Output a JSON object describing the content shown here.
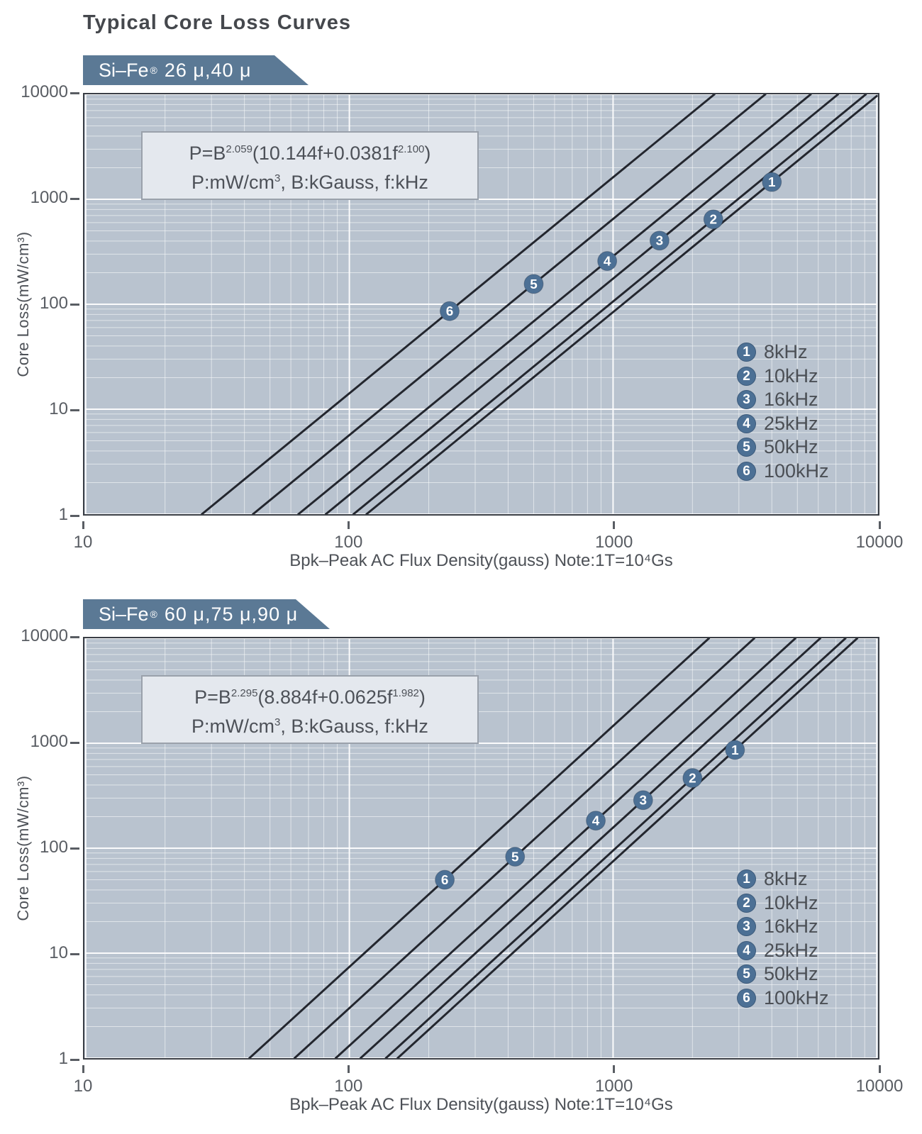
{
  "page": {
    "title": "Typical Core Loss Curves"
  },
  "colors": {
    "page_bg": "#ffffff",
    "plot_bg": "#b9c3cf",
    "grid": "#ffffff",
    "curve": "#23262e",
    "badge_bg": "#5b7995",
    "badge_text": "#ffffff",
    "marker_fill": "#4c7095",
    "marker_text": "#ffffff",
    "title_text": "#45484d",
    "axis_text": "#595d63",
    "formula_box_bg": "#e4e8ee",
    "formula_box_border": "#9aa1ab",
    "plot_border": "#3a3e45"
  },
  "charts": [
    {
      "badge": {
        "name": "Si–Fe",
        "reg": "®",
        "sizes": "26 μ,40 μ"
      },
      "formula_line1": [
        {
          "t": "P=B"
        },
        {
          "t": "2.059",
          "sup": 1
        },
        {
          "t": "(10.144f+0.0381f"
        },
        {
          "t": "2.100",
          "sup": 1
        },
        {
          "t": ")"
        }
      ],
      "formula_line2": [
        {
          "t": "P:mW/cm"
        },
        {
          "t": "3",
          "sup": 1
        },
        {
          "t": ",  B:kGauss,  f:kHz"
        }
      ],
      "ylabel": "Core Loss(mW/cm³)",
      "xlabel": "Bpk–Peak AC Flux Density(gauss) Note:1T=10⁴Gs",
      "chart_data": {
        "type": "line",
        "title": "Si–Fe 26μ,40μ",
        "x_scale": "log",
        "y_scale": "log",
        "xlim": [
          10,
          10000
        ],
        "ylim": [
          1,
          10000
        ],
        "x_ticks": [
          "10",
          "100",
          "1000",
          "10000"
        ],
        "y_ticks": [
          "10000",
          "1000",
          "100",
          "10",
          "1"
        ],
        "grid": "log minor grid on, white lines on slate background",
        "xlabel": "Bpk–Peak AC Flux Density(gauss) Note:1T=10⁴Gs",
        "ylabel": "Core Loss(mW/cm³)",
        "model": "P = B^2.059 × (10.144f + 0.0381f^2.100),  P:mW/cm³, B:kGauss, f:kHz",
        "legend_position": "lower right",
        "series": [
          {
            "num": "1",
            "label": "8kHz",
            "f_kHz": 8,
            "points_B_gauss_vs_P": [
              [
                116.2,
                1
              ],
              [
                4000,
                1461
              ],
              [
                10000,
                9641
              ]
            ],
            "marker_at": [
              4000,
              1461
            ]
          },
          {
            "num": "2",
            "label": "10kHz",
            "f_kHz": 10,
            "points_B_gauss_vs_P": [
              [
                103.7,
                1
              ],
              [
                2400,
                644
              ],
              [
                9090,
                10000
              ]
            ],
            "marker_at": [
              2400,
              644
            ]
          },
          {
            "num": "3",
            "label": "16kHz",
            "f_kHz": 16,
            "points_B_gauss_vs_P": [
              [
                81.4,
                1
              ],
              [
                1500,
                404
              ],
              [
                7130,
                10000
              ]
            ],
            "marker_at": [
              1500,
              404
            ]
          },
          {
            "num": "4",
            "label": "25kHz",
            "f_kHz": 25,
            "points_B_gauss_vs_P": [
              [
                64.1,
                1
              ],
              [
                950,
                258
              ],
              [
                5615,
                10000
              ]
            ],
            "marker_at": [
              950,
              258
            ]
          },
          {
            "num": "5",
            "label": "50kHz",
            "f_kHz": 50,
            "points_B_gauss_vs_P": [
              [
                43.1,
                1
              ],
              [
                500,
                156
              ],
              [
                3778,
                10000
              ]
            ],
            "marker_at": [
              500,
              156
            ]
          },
          {
            "num": "6",
            "label": "100kHz",
            "f_kHz": 100,
            "points_B_gauss_vs_P": [
              [
                27.6,
                1
              ],
              [
                240,
                86
              ],
              [
                2422,
                10000
              ]
            ],
            "marker_at": [
              240,
              86
            ]
          }
        ]
      }
    },
    {
      "badge": {
        "name": "Si–Fe",
        "reg": "®",
        "sizes": "60 μ,75 μ,90 μ"
      },
      "formula_line1": [
        {
          "t": "P=B"
        },
        {
          "t": "2.295",
          "sup": 1
        },
        {
          "t": "(8.884f+0.0625f"
        },
        {
          "t": "1.982",
          "sup": 1
        },
        {
          "t": ")"
        }
      ],
      "formula_line2": [
        {
          "t": "P:mW/cm"
        },
        {
          "t": "3",
          "sup": 1
        },
        {
          "t": ",  B:kGauss,  f:kHz"
        }
      ],
      "ylabel": "Core Loss(mW/cm³)",
      "xlabel": "Bpk–Peak AC Flux Density(gauss) Note:1T=10⁴Gs",
      "chart_data": {
        "type": "line",
        "title": "Si–Fe 60μ,75μ,90μ",
        "x_scale": "log",
        "y_scale": "log",
        "xlim": [
          10,
          10000
        ],
        "ylim": [
          1,
          10000
        ],
        "x_ticks": [
          "10",
          "100",
          "1000",
          "10000"
        ],
        "y_ticks": [
          "10000",
          "1000",
          "100",
          "10",
          "1"
        ],
        "grid": "log minor grid on, white lines on slate background",
        "xlabel": "Bpk–Peak AC Flux Density(gauss) Note:1T=10⁴Gs",
        "ylabel": "Core Loss(mW/cm³)",
        "model": "P = B^2.295 × (8.884f + 0.0625f^1.982),  P:mW/cm³, B:kGauss, f:kHz",
        "legend_position": "lower right",
        "series": [
          {
            "num": "1",
            "label": "8kHz",
            "f_kHz": 8,
            "points_B_gauss_vs_P": [
              [
                152.5,
                1
              ],
              [
                2900,
                863
              ],
              [
                8435,
                10000
              ]
            ],
            "marker_at": [
              2900,
              863
            ]
          },
          {
            "num": "2",
            "label": "10kHz",
            "f_kHz": 10,
            "points_B_gauss_vs_P": [
              [
                137.6,
                1
              ],
              [
                2000,
                466
              ],
              [
                7612,
                10000
              ]
            ],
            "marker_at": [
              2000,
              466
            ]
          },
          {
            "num": "3",
            "label": "16kHz",
            "f_kHz": 16,
            "points_B_gauss_vs_P": [
              [
                110.3,
                1
              ],
              [
                1300,
                287
              ],
              [
                6105,
                10000
              ]
            ],
            "marker_at": [
              1300,
              287
            ]
          },
          {
            "num": "4",
            "label": "25kHz",
            "f_kHz": 25,
            "points_B_gauss_vs_P": [
              [
                88.8,
                1
              ],
              [
                860,
                183
              ],
              [
                4913,
                10000
              ]
            ],
            "marker_at": [
              860,
              183
            ]
          },
          {
            "num": "5",
            "label": "50kHz",
            "f_kHz": 50,
            "points_B_gauss_vs_P": [
              [
                62.0,
                1
              ],
              [
                425,
                83
              ],
              [
                3432,
                10000
              ]
            ],
            "marker_at": [
              425,
              83
            ]
          },
          {
            "num": "6",
            "label": "100kHz",
            "f_kHz": 100,
            "points_B_gauss_vs_P": [
              [
                41.8,
                1
              ],
              [
                230,
                50
              ],
              [
                2310,
                10000
              ]
            ],
            "marker_at": [
              230,
              50
            ]
          }
        ]
      }
    }
  ]
}
